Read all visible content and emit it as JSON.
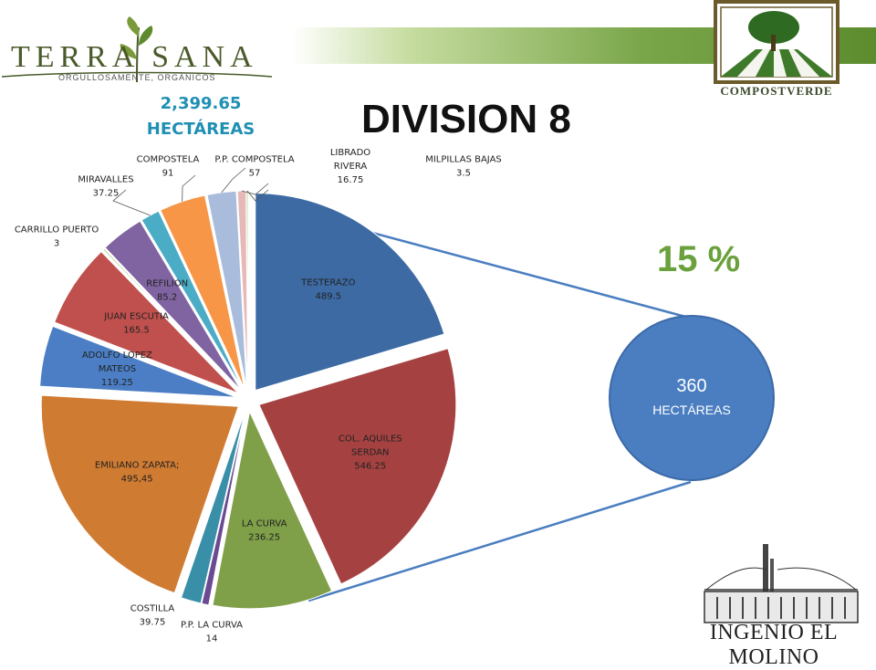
{
  "brands": {
    "left_name": "TERRA SANA",
    "left_tagline": "ORGULLOSAMENTE, ORGÁNICOS",
    "right_name": "COMPOSTVERDE",
    "bottom_name": "INGENIO EL MOLINO"
  },
  "total": {
    "value": "2,399.65",
    "unit": "HECTÁREAS"
  },
  "callout": {
    "percent": "15 %",
    "value": "360",
    "unit": "HECTÁREAS"
  },
  "chart_data": {
    "type": "pie",
    "title": "DIVISION 8",
    "start_angle_deg": 0,
    "direction": "clockwise",
    "legend": "none",
    "slices": [
      {
        "label": [
          "TESTERAZO"
        ],
        "value_text": "489.5",
        "value": 489.5,
        "color": "#3d6aa3",
        "explode": 1
      },
      {
        "label": [
          "COL. AQUILES",
          "SERDAN"
        ],
        "value_text": "546.25",
        "value": 546.25,
        "color": "#a54241",
        "explode": 1
      },
      {
        "label": [
          "LA CURVA"
        ],
        "value_text": "236.25",
        "value": 236.25,
        "color": "#7f9f48",
        "explode": 1
      },
      {
        "label": [
          "P.P. LA CURVA"
        ],
        "value_text": "14",
        "value": 14,
        "color": "#6a4a92",
        "explode": 1,
        "outside": true
      },
      {
        "label": [
          "COSTILLA"
        ],
        "value_text": "39.75",
        "value": 39.75,
        "color": "#3a8fa8",
        "explode": 1,
        "outside": true
      },
      {
        "label": [
          "EMILIANO ZAPATA;"
        ],
        "value_text": "495,45",
        "value": 495.45,
        "color": "#d07b32",
        "explode": 1
      },
      {
        "label": [
          "ADOLFO LOPEZ",
          "MATEOS"
        ],
        "value_text": "119.25",
        "value": 119.25,
        "color": "#4b7ec4",
        "explode": 1
      },
      {
        "label": [
          "JUAN ESCUTIA"
        ],
        "value_text": "165.5",
        "value": 165.5,
        "color": "#c0504d",
        "explode": 1
      },
      {
        "label": [
          "CARRILLO PUERTO"
        ],
        "value_text": "3",
        "value": 3,
        "color": "#9bbb59",
        "explode": 1,
        "outside": true
      },
      {
        "label": [
          "REFILION"
        ],
        "value_text": "85.2",
        "value": 85.2,
        "color": "#8064a2",
        "explode": 1
      },
      {
        "label": [
          "MIRAVALLES"
        ],
        "value_text": "37.25",
        "value": 37.25,
        "color": "#4bacc6",
        "explode": 1,
        "outside": true
      },
      {
        "label": [
          "COMPOSTELA"
        ],
        "value_text": "91",
        "value": 91,
        "color": "#f79646",
        "explode": 1,
        "outside": true
      },
      {
        "label": [
          "P.P. COMPOSTELA"
        ],
        "value_text": "57",
        "value": 57,
        "color": "#a9bcdc",
        "explode": 1,
        "outside": true
      },
      {
        "label": [
          "LIBRADO",
          "RIVERA"
        ],
        "value_text": "16.75",
        "value": 16.75,
        "color": "#e6b8b7",
        "explode": 1,
        "outside": true
      },
      {
        "label": [
          "MILPILLAS BAJAS"
        ],
        "value_text": "3.5",
        "value": 3.5,
        "color": "#c3d69b",
        "explode": 1,
        "outside": true
      }
    ]
  }
}
